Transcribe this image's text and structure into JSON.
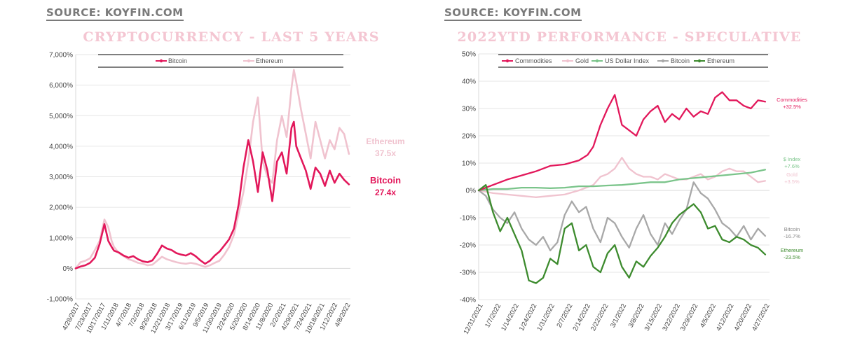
{
  "sources": [
    "SOURCE: KOYFIN.COM",
    "SOURCE: KOYFIN.COM"
  ],
  "chart_data": [
    {
      "type": "line",
      "title": "CRYPTOCURRENCY - LAST 5 YEARS",
      "yticks": [
        "7,000%",
        "6,000%",
        "5,000%",
        "4,000%",
        "3,000%",
        "2,000%",
        "1,000%",
        "0%",
        "-1,000%"
      ],
      "ytick_values": [
        7000,
        6000,
        5000,
        4000,
        3000,
        2000,
        1000,
        0,
        -1000
      ],
      "ylim": [
        -1000,
        7000
      ],
      "xlim": [
        0,
        57.3
      ],
      "xticks": [
        "4/28/2017",
        "7/23/2017",
        "10/17/2017",
        "1/11/2018",
        "4/7/2018",
        "7/2/2018",
        "9/26/2018",
        "12/21/2018",
        "3/17/2019",
        "6/11/2019",
        "9/5/2019",
        "11/30/2019",
        "2/24/2020",
        "5/20/2020",
        "8/14/2020",
        "11/8/2020",
        "2/2/2021",
        "4/29/2021",
        "7/24/2021",
        "10/18/2021",
        "1/12/2022",
        "4/8/2022"
      ],
      "legend_position": "top-center",
      "series": [
        {
          "name": "Bitcoin",
          "color": "#e2185b",
          "end_label": "Bitcoin",
          "end_value": "27.4x",
          "x": [
            0,
            1,
            2,
            3,
            4,
            5,
            6,
            6.8,
            7.5,
            8,
            9,
            10,
            11,
            12,
            13,
            14,
            15,
            16,
            17,
            18,
            19,
            20,
            21,
            22,
            23,
            24,
            25,
            26,
            27,
            28,
            29,
            30,
            31,
            32,
            33,
            34,
            35,
            36,
            37,
            38,
            39,
            40,
            41,
            42,
            43,
            44,
            45,
            45.5,
            46,
            47,
            48,
            49,
            50,
            51,
            52,
            53,
            54,
            55,
            56,
            57
          ],
          "values": [
            0,
            60,
            100,
            180,
            350,
            800,
            1450,
            900,
            700,
            580,
            520,
            420,
            350,
            400,
            300,
            230,
            200,
            260,
            480,
            750,
            650,
            600,
            500,
            450,
            420,
            500,
            400,
            260,
            150,
            250,
            420,
            550,
            750,
            950,
            1300,
            2100,
            3300,
            4200,
            3500,
            2500,
            3800,
            3200,
            2200,
            3500,
            3800,
            3100,
            4600,
            4800,
            4000,
            3600,
            3200,
            2600,
            3300,
            3100,
            2700,
            3200,
            2800,
            3100,
            2900,
            2750
          ]
        },
        {
          "name": "Ethereum",
          "color": "#f0c3cf",
          "end_label": "Ethereum",
          "end_value": "37.5x",
          "x": [
            0,
            1,
            2,
            3,
            4,
            5,
            6,
            6.8,
            7.5,
            8,
            9,
            10,
            11,
            12,
            13,
            14,
            15,
            16,
            17,
            18,
            19,
            20,
            21,
            22,
            23,
            24,
            25,
            26,
            27,
            28,
            29,
            30,
            31,
            32,
            33,
            34,
            35,
            36,
            37,
            38,
            39,
            40,
            41,
            42,
            43,
            44,
            45,
            45.5,
            46,
            47,
            48,
            49,
            50,
            51,
            52,
            53,
            54,
            55,
            56,
            57
          ],
          "values": [
            0,
            200,
            250,
            330,
            600,
            900,
            1600,
            1350,
            900,
            700,
            500,
            400,
            300,
            250,
            180,
            150,
            100,
            120,
            250,
            380,
            300,
            250,
            200,
            170,
            150,
            180,
            150,
            100,
            50,
            100,
            180,
            250,
            450,
            700,
            1100,
            1800,
            2500,
            3500,
            4800,
            5600,
            3500,
            3000,
            2800,
            4200,
            5000,
            4300,
            5900,
            6500,
            6100,
            5200,
            4400,
            3600,
            4800,
            4200,
            3600,
            4200,
            3900,
            4600,
            4400,
            3750
          ]
        }
      ]
    },
    {
      "type": "line",
      "title": "2022YTD PERFORMANCE - SPECULATIVE",
      "yticks": [
        "50%",
        "40%",
        "30%",
        "20%",
        "10%",
        "0%",
        "-10%",
        "-20%",
        "-30%",
        "-40%"
      ],
      "ytick_values": [
        50,
        40,
        30,
        20,
        10,
        0,
        -10,
        -20,
        -30,
        -40
      ],
      "ylim": [
        -40,
        50
      ],
      "xlim": [
        0,
        20.3
      ],
      "xticks": [
        "12/31/2021",
        "1/7/2022",
        "1/14/2022",
        "1/24/2022",
        "1/31/2022",
        "2/7/2022",
        "2/14/2022",
        "2/22/2022",
        "3/1/2022",
        "3/8/2022",
        "3/15/2022",
        "3/22/2022",
        "3/29/2022",
        "4/5/2022",
        "4/12/2022",
        "4/20/2022",
        "4/27/2022"
      ],
      "legend_position": "top",
      "series": [
        {
          "name": "Commodities",
          "color": "#e2185b",
          "end_label": "Commodities",
          "end_value": "+32.5%",
          "x": [
            0,
            1,
            2,
            3,
            4,
            5,
            6,
            7,
            7.6,
            8,
            8.5,
            9,
            9.5,
            10,
            10.5,
            11,
            11.5,
            12,
            12.5,
            13,
            13.5,
            14,
            14.5,
            15,
            15.5,
            16,
            16.5,
            17,
            17.5,
            18,
            18.5,
            19,
            19.5,
            20
          ],
          "values": [
            0,
            2,
            4,
            5.5,
            7,
            9,
            9.5,
            11,
            13,
            16,
            24,
            30,
            35,
            24,
            22,
            20,
            26,
            29,
            31,
            25,
            28,
            26,
            30,
            27,
            29,
            28,
            34,
            36,
            33,
            33,
            31,
            30,
            33,
            32.5
          ]
        },
        {
          "name": "Gold",
          "color": "#f0c3cf",
          "end_label": "Gold",
          "end_value": "+3.5%",
          "x": [
            0,
            1,
            2,
            3,
            4,
            5,
            6,
            7,
            8,
            8.5,
            9,
            9.5,
            10,
            10.5,
            11,
            11.5,
            12,
            12.5,
            13,
            13.5,
            14,
            14.5,
            15,
            15.5,
            16,
            16.5,
            17,
            17.5,
            18,
            18.5,
            19,
            19.5,
            20
          ],
          "values": [
            0,
            -1,
            -1.5,
            -2,
            -2.5,
            -2,
            -1.5,
            0,
            2,
            5,
            6,
            8,
            12,
            8,
            6,
            5,
            5,
            4,
            6,
            5,
            4,
            4,
            5,
            6,
            4,
            5,
            7,
            8,
            7,
            7,
            5,
            3,
            3.5
          ]
        },
        {
          "name": "US Dollar Index",
          "color": "#7ac48a",
          "end_label": "$ Index",
          "end_value": "+7.6%",
          "x": [
            0,
            1,
            2,
            3,
            4,
            5,
            6,
            7,
            8,
            9,
            10,
            11,
            12,
            13,
            14,
            15,
            16,
            17,
            18,
            19,
            20
          ],
          "values": [
            0,
            0.5,
            0.5,
            1,
            1,
            0.8,
            1,
            1.5,
            1.5,
            1.8,
            2,
            2.5,
            3,
            3,
            4,
            4.5,
            5,
            5.5,
            6,
            6.5,
            7.6
          ]
        },
        {
          "name": "Bitcoin",
          "color": "#a8a8a8",
          "end_label": "Bitcoin",
          "end_value": "-16.7%",
          "x": [
            0,
            0.5,
            1,
            1.5,
            2,
            2.5,
            3,
            3.5,
            4,
            4.5,
            5,
            5.5,
            6,
            6.5,
            7,
            7.5,
            8,
            8.5,
            9,
            9.5,
            10,
            10.5,
            11,
            11.5,
            12,
            12.5,
            13,
            13.5,
            14,
            14.5,
            15,
            15.5,
            16,
            16.5,
            17,
            17.5,
            18,
            18.5,
            19,
            19.5,
            20
          ],
          "values": [
            0,
            -2,
            -7,
            -10,
            -12,
            -8,
            -14,
            -18,
            -20,
            -17,
            -22,
            -19,
            -9,
            -4,
            -8,
            -6,
            -14,
            -19,
            -10,
            -12,
            -17,
            -21,
            -14,
            -9,
            -16,
            -20,
            -12,
            -16,
            -11,
            -7,
            3,
            -1,
            -3,
            -7,
            -12,
            -14,
            -17,
            -13,
            -18,
            -14,
            -16.7
          ]
        },
        {
          "name": "Ethereum",
          "color": "#3d8b2e",
          "end_label": "Ethereum",
          "end_value": "-23.5%",
          "x": [
            0,
            0.5,
            1,
            1.5,
            2,
            2.5,
            3,
            3.5,
            4,
            4.5,
            5,
            5.5,
            6,
            6.5,
            7,
            7.5,
            8,
            8.5,
            9,
            9.5,
            10,
            10.5,
            11,
            11.5,
            12,
            12.5,
            13,
            13.5,
            14,
            14.5,
            15,
            15.5,
            16,
            16.5,
            17,
            17.5,
            18,
            18.5,
            19,
            19.5,
            20
          ],
          "values": [
            0,
            2,
            -8,
            -15,
            -10,
            -16,
            -22,
            -33,
            -34,
            -32,
            -25,
            -27,
            -14,
            -12,
            -22,
            -20,
            -28,
            -30,
            -23,
            -20,
            -28,
            -32,
            -26,
            -28,
            -24,
            -21,
            -17,
            -12,
            -9,
            -7,
            -5,
            -8,
            -14,
            -13,
            -18,
            -19,
            -17,
            -18,
            -20,
            -21,
            -23.5
          ]
        }
      ]
    }
  ]
}
